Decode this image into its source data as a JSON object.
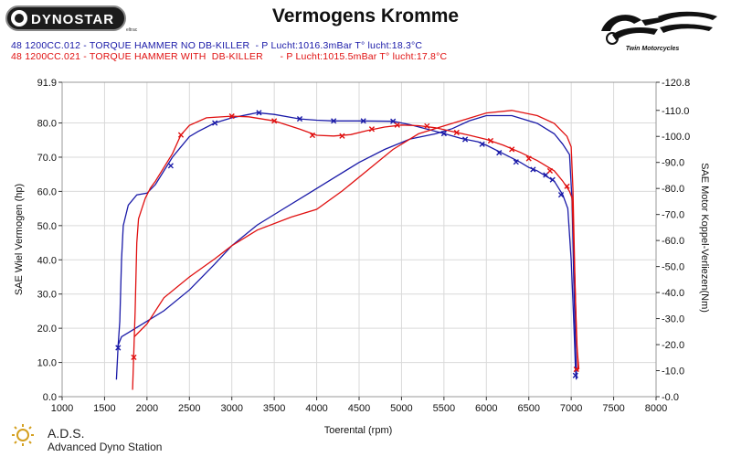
{
  "title": "Vermogens Kromme",
  "logo": {
    "text": "DYNOSTAR",
    "sub": "eltrac"
  },
  "brand": {
    "text": "Twin Motorcycles"
  },
  "footer": {
    "short": "A.D.S.",
    "full": "Advanced Dyno Station"
  },
  "runs": [
    {
      "label": "48 1200CC.012 - TORQUE HAMMER NO DB-KILLER  - P Lucht:1016.3mBar T° lucht:18.3°C",
      "color": "#1a1aa8"
    },
    {
      "label": "48 1200CC.021 - TORQUE HAMMER WITH  DB-KILLER      - P Lucht:1015.5mBar T° lucht:17.8°C",
      "color": "#e01010"
    }
  ],
  "chart_data": {
    "type": "line",
    "xlabel": "Toerental (rpm)",
    "ylabel": "SAE Wiel Vermogen (hp)",
    "y2label": "SAE Motor Koppel-Verliezen(Nm)",
    "xlim": [
      1000,
      8000
    ],
    "ylim": [
      0.0,
      91.9
    ],
    "y2lim": [
      0.0,
      -120.8
    ],
    "x_ticks": [
      "1000",
      "1500",
      "2000",
      "2500",
      "3000",
      "3500",
      "4000",
      "4500",
      "5000",
      "5500",
      "6000",
      "6500",
      "7000",
      "7500",
      "8000"
    ],
    "y_ticks": [
      "0.0",
      "10.0",
      "20.0",
      "30.0",
      "40.0",
      "50.0",
      "60.0",
      "70.0",
      "80.0",
      "91.9"
    ],
    "y2_ticks": [
      "-0.0",
      "-10.0",
      "-20.0",
      "-30.0",
      "-40.0",
      "-50.0",
      "-60.0",
      "-70.0",
      "-80.0",
      "-90.0",
      "-100.0",
      "-110.0",
      "-120.8"
    ],
    "series": [
      {
        "color": "#1a1aa8",
        "power_hp": [
          [
            1640,
            5
          ],
          [
            1660,
            15
          ],
          [
            1680,
            22
          ],
          [
            1700,
            40
          ],
          [
            1720,
            50
          ],
          [
            1780,
            56
          ],
          [
            1880,
            59
          ],
          [
            2000,
            59.5
          ],
          [
            2100,
            62
          ],
          [
            2200,
            66
          ],
          [
            2300,
            70
          ],
          [
            2400,
            73
          ],
          [
            2500,
            76
          ],
          [
            2600,
            77.5
          ],
          [
            2800,
            80
          ],
          [
            3000,
            81.5
          ],
          [
            3200,
            82.5
          ],
          [
            3300,
            83
          ],
          [
            3500,
            82.5
          ],
          [
            3800,
            81.2
          ],
          [
            4000,
            80.8
          ],
          [
            4200,
            80.6
          ],
          [
            4500,
            80.6
          ],
          [
            4900,
            80.5
          ],
          [
            5100,
            79.5
          ],
          [
            5300,
            78.2
          ],
          [
            5500,
            76.9
          ],
          [
            5700,
            75.5
          ],
          [
            5900,
            74.5
          ],
          [
            6000,
            73.5
          ],
          [
            6200,
            71
          ],
          [
            6400,
            68.5
          ],
          [
            6500,
            67
          ],
          [
            6600,
            66
          ],
          [
            6700,
            64.5
          ],
          [
            6800,
            63
          ],
          [
            6900,
            59
          ],
          [
            6960,
            55
          ],
          [
            7000,
            40
          ],
          [
            7020,
            28
          ],
          [
            7040,
            15
          ],
          [
            7050,
            8
          ],
          [
            7060,
            5
          ]
        ],
        "torque_nm": [
          [
            1650,
            19
          ],
          [
            1700,
            23
          ],
          [
            1800,
            25
          ],
          [
            2000,
            29
          ],
          [
            2200,
            33
          ],
          [
            2500,
            41
          ],
          [
            2800,
            51
          ],
          [
            3000,
            58
          ],
          [
            3300,
            66
          ],
          [
            3600,
            72
          ],
          [
            3900,
            78
          ],
          [
            4200,
            84
          ],
          [
            4500,
            90
          ],
          [
            4800,
            95
          ],
          [
            5100,
            99
          ],
          [
            5400,
            101
          ],
          [
            5600,
            103
          ],
          [
            5800,
            106
          ],
          [
            6000,
            108
          ],
          [
            6300,
            108
          ],
          [
            6600,
            105
          ],
          [
            6800,
            101
          ],
          [
            6900,
            97
          ],
          [
            6980,
            93
          ],
          [
            7010,
            75
          ],
          [
            7030,
            45
          ],
          [
            7050,
            20
          ],
          [
            7060,
            10
          ],
          [
            7065,
            7
          ]
        ],
        "markers": [
          [
            1660,
            14.3
          ],
          [
            2280,
            67.5
          ],
          [
            2800,
            80
          ],
          [
            3320,
            83
          ],
          [
            3800,
            81.2
          ],
          [
            4200,
            80.6
          ],
          [
            4550,
            80.6
          ],
          [
            4900,
            80.5
          ],
          [
            5500,
            76.9
          ],
          [
            5750,
            75.2
          ],
          [
            5950,
            73.8
          ],
          [
            6150,
            71.3
          ],
          [
            6350,
            68.6
          ],
          [
            6550,
            66.4
          ],
          [
            6700,
            64.8
          ],
          [
            6780,
            63.4
          ],
          [
            6880,
            59
          ],
          [
            7050,
            6.2
          ]
        ]
      },
      {
        "color": "#e01010",
        "power_hp": [
          [
            1830,
            2
          ],
          [
            1860,
            25
          ],
          [
            1880,
            45
          ],
          [
            1900,
            52
          ],
          [
            1940,
            55
          ],
          [
            1980,
            58
          ],
          [
            2040,
            61
          ],
          [
            2100,
            63
          ],
          [
            2200,
            67
          ],
          [
            2300,
            71
          ],
          [
            2400,
            76.5
          ],
          [
            2500,
            79.3
          ],
          [
            2700,
            81.5
          ],
          [
            3000,
            82
          ],
          [
            3200,
            81.8
          ],
          [
            3500,
            80.6
          ],
          [
            3800,
            78.2
          ],
          [
            4000,
            76.4
          ],
          [
            4200,
            76.2
          ],
          [
            4400,
            76.6
          ],
          [
            4600,
            77.8
          ],
          [
            4800,
            78.8
          ],
          [
            5000,
            79.4
          ],
          [
            5200,
            79.2
          ],
          [
            5400,
            78.6
          ],
          [
            5600,
            77.5
          ],
          [
            5800,
            76.4
          ],
          [
            6000,
            75.2
          ],
          [
            6200,
            73.5
          ],
          [
            6400,
            71.4
          ],
          [
            6600,
            69
          ],
          [
            6800,
            66
          ],
          [
            6900,
            63
          ],
          [
            6980,
            60
          ],
          [
            7010,
            58
          ],
          [
            7030,
            45
          ],
          [
            7050,
            28
          ],
          [
            7070,
            14
          ],
          [
            7090,
            8
          ]
        ],
        "torque_nm": [
          [
            1850,
            23
          ],
          [
            2000,
            28
          ],
          [
            2200,
            38
          ],
          [
            2500,
            46
          ],
          [
            2800,
            53
          ],
          [
            3000,
            58
          ],
          [
            3300,
            64
          ],
          [
            3700,
            69
          ],
          [
            4000,
            72
          ],
          [
            4300,
            79
          ],
          [
            4600,
            87
          ],
          [
            4900,
            95
          ],
          [
            5200,
            101
          ],
          [
            5500,
            104
          ],
          [
            5800,
            107
          ],
          [
            6000,
            109
          ],
          [
            6300,
            110
          ],
          [
            6600,
            108
          ],
          [
            6800,
            105
          ],
          [
            6950,
            100
          ],
          [
            7000,
            96
          ],
          [
            7020,
            80
          ],
          [
            7040,
            50
          ],
          [
            7060,
            25
          ],
          [
            7080,
            10
          ]
        ],
        "markers": [
          [
            1845,
            11.5
          ],
          [
            2400,
            76.5
          ],
          [
            3000,
            82
          ],
          [
            3500,
            80.6
          ],
          [
            3950,
            76.4
          ],
          [
            4300,
            76.2
          ],
          [
            4650,
            78.2
          ],
          [
            4950,
            79.4
          ],
          [
            5300,
            79.1
          ],
          [
            5650,
            77.2
          ],
          [
            6050,
            74.8
          ],
          [
            6300,
            72.3
          ],
          [
            6500,
            69.6
          ],
          [
            6750,
            66
          ],
          [
            6950,
            61.5
          ],
          [
            7060,
            8
          ]
        ]
      }
    ]
  }
}
